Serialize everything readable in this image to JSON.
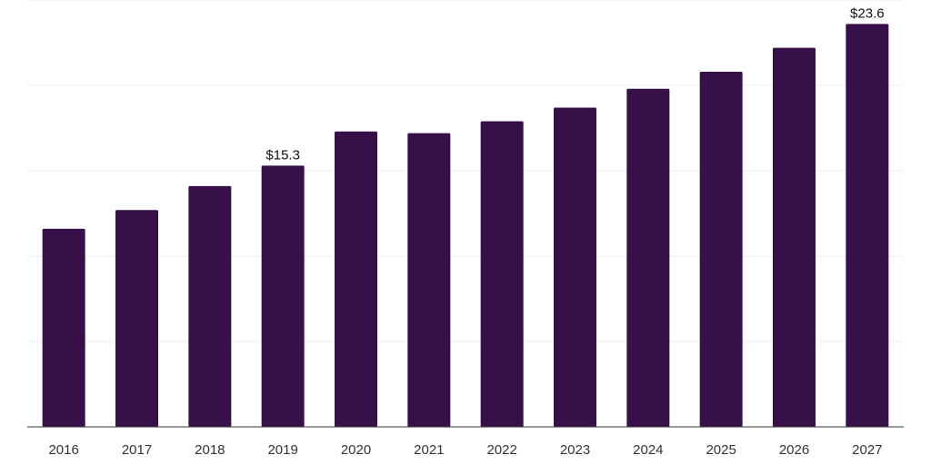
{
  "chart_data": {
    "type": "bar",
    "title": "",
    "xlabel": "",
    "ylabel": "",
    "categories": [
      "2016",
      "2017",
      "2018",
      "2019",
      "2020",
      "2021",
      "2022",
      "2023",
      "2024",
      "2025",
      "2026",
      "2027"
    ],
    "values": [
      11.6,
      12.7,
      14.1,
      15.3,
      17.3,
      17.2,
      17.9,
      18.7,
      19.8,
      20.8,
      22.2,
      23.6
    ],
    "data_labels": {
      "2019": "$15.3",
      "2027": "$23.6"
    },
    "ylim": [
      0,
      25
    ],
    "y_gridlines": [
      5,
      10,
      15,
      20,
      25
    ],
    "grid": true,
    "legend": "none",
    "colors": {
      "bar": "#37104a",
      "grid": "#eeeeee",
      "axis": "#333333"
    }
  }
}
